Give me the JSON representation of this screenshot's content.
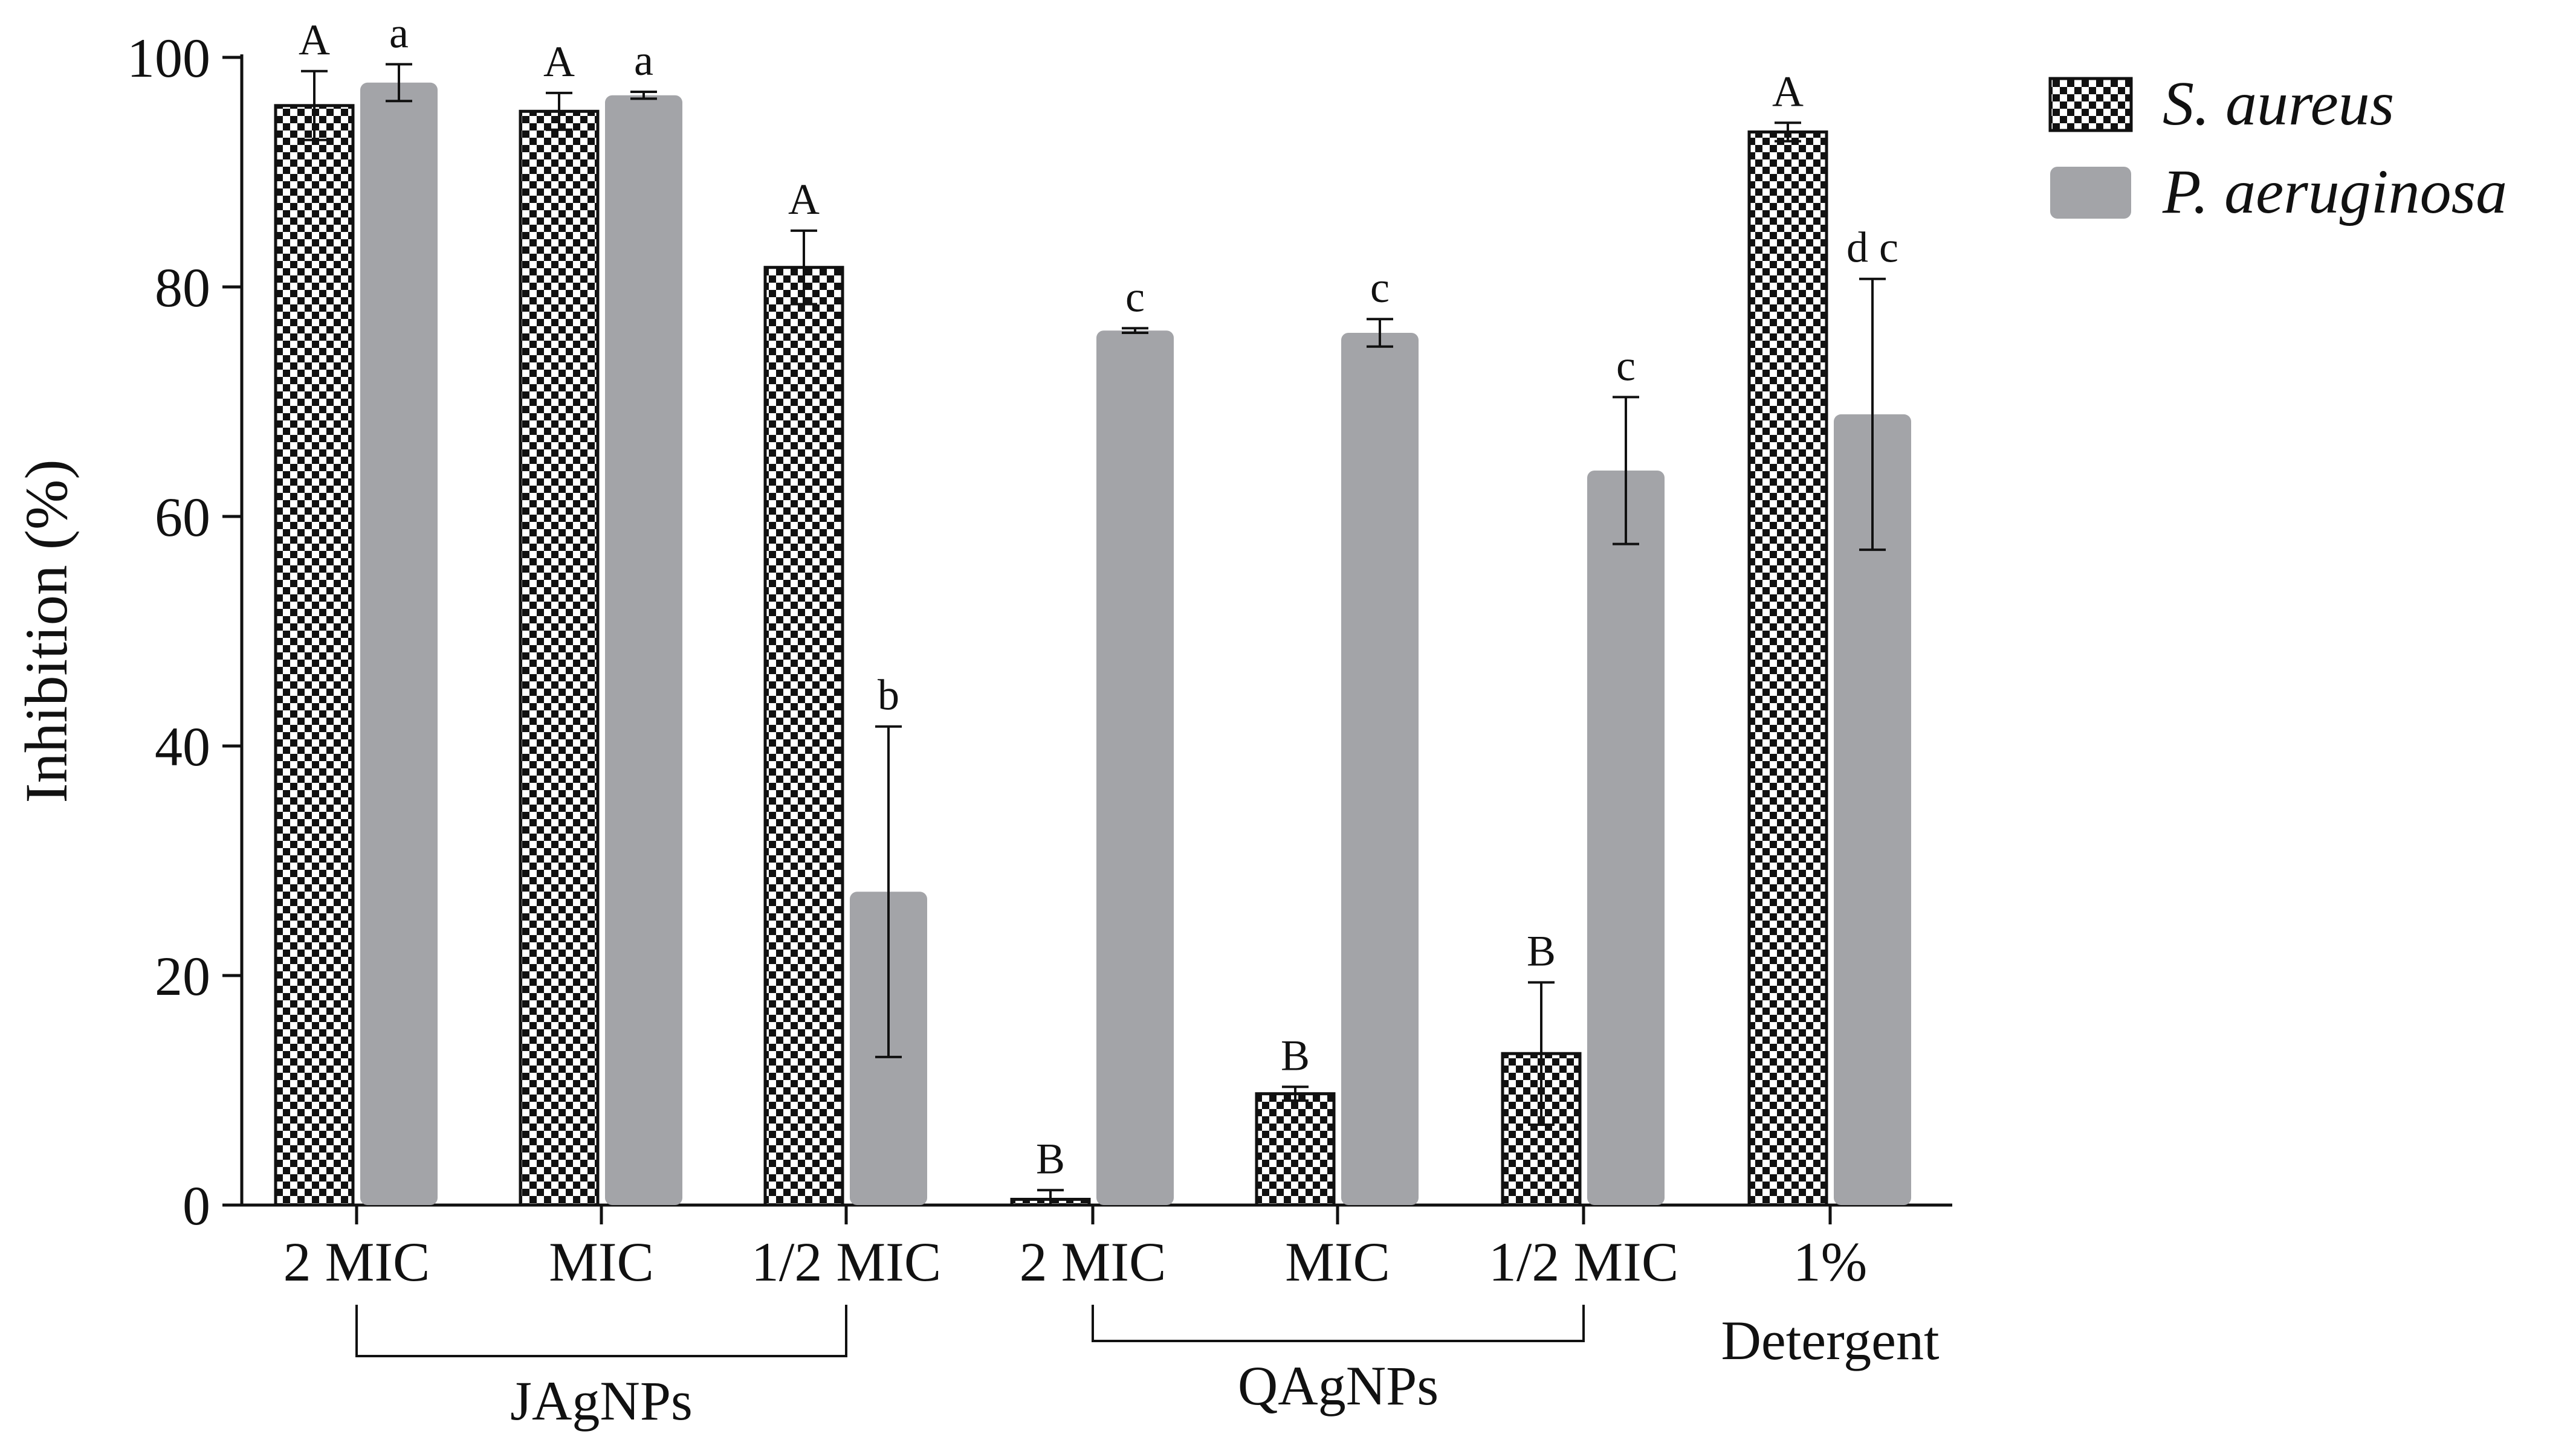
{
  "chart_data": {
    "type": "bar",
    "ylabel": "Inhibition (%)",
    "ylim": [
      0,
      100
    ],
    "yticks": [
      0,
      20,
      40,
      60,
      80,
      100
    ],
    "categories": [
      "2 MIC",
      "MIC",
      "1/2 MIC",
      "2 MIC",
      "MIC",
      "1/2 MIC",
      "1%"
    ],
    "category_sublabels": [
      "",
      "",
      "",
      "",
      "",
      "",
      "Detergent"
    ],
    "groups": [
      {
        "label": "JAgNPs",
        "from": 0,
        "to": 2
      },
      {
        "label": "QAgNPs",
        "from": 3,
        "to": 5
      }
    ],
    "legend_position": "top-right",
    "series": [
      {
        "name": "S. aureus",
        "pattern": "checkered",
        "color": "#111111",
        "values": [
          95.8,
          95.3,
          81.7,
          0.5,
          9.7,
          13.2,
          93.5
        ],
        "errors": [
          3.0,
          1.6,
          3.2,
          0.8,
          0.6,
          6.2,
          0.8
        ],
        "letters": [
          "A",
          "A",
          "A",
          "B",
          "B",
          "B",
          "A"
        ]
      },
      {
        "name": "P. aeruginosa",
        "pattern": "solid",
        "color": "#a3a4a8",
        "values": [
          97.8,
          96.7,
          27.3,
          76.2,
          76.0,
          64.0,
          68.9
        ],
        "errors": [
          1.6,
          0.3,
          14.4,
          0.2,
          1.2,
          6.4,
          11.8
        ],
        "letters": [
          "a",
          "a",
          "b",
          "c",
          "c",
          "c",
          "d c"
        ]
      }
    ]
  }
}
